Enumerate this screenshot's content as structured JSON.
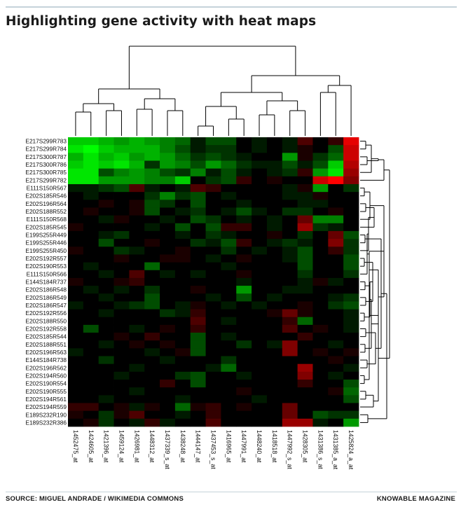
{
  "title": "Highlighting gene activity with heat maps",
  "source": "SOURCE: MIGUEL ANDRADE / WIKIMEDIA COMMONS",
  "publisher": "KNOWABLE MAGAZINE",
  "colors": {
    "high": "#00ff00",
    "low": "#ff0000",
    "mid": "#000000",
    "dendrogram": "#000000"
  },
  "chart_data": {
    "type": "heatmap",
    "title": "",
    "xlabel": "",
    "ylabel": "",
    "rows": [
      "E217S299R783",
      "E217S299R784",
      "E217S300R787",
      "E217S300R786",
      "E217S300R785",
      "E217S299R782",
      "E111S150R567",
      "E202S185R546",
      "E202S196R564",
      "E202S188R552",
      "E111S150R568",
      "E202S185R545",
      "E199S255R449",
      "E199S255R446",
      "E199S255R450",
      "E202S192R557",
      "E202S190R553",
      "E111S150R566",
      "E144S184R737",
      "E202S186R548",
      "E202S186R549",
      "E202S186R547",
      "E202S192R556",
      "E202S188R550",
      "E202S192R558",
      "E202S185R544",
      "E202S188R551",
      "E202S196R563",
      "E144S184R738",
      "E202S196R562",
      "E202S194R560",
      "E202S190R554",
      "E202S190R555",
      "E202S194R561",
      "E202S194R559",
      "E189S232R190",
      "E189S232R386"
    ],
    "columns": [
      "1452475_at",
      "1424605_at",
      "1421396_at",
      "1459124_at",
      "1426981_at",
      "1448312_at",
      "1437339_s_at",
      "1438248_at",
      "1444147_at",
      "1437453_s_at",
      "1416965_at",
      "1447991_at",
      "1448240_at",
      "1418518_at",
      "1447992_s_at",
      "1428305_at",
      "1431386_s_at",
      "1431385_a_at",
      "1425824_a_at"
    ],
    "values": [
      [
        0.8,
        0.8,
        0.7,
        0.6,
        0.7,
        0.6,
        0.5,
        0.4,
        0.1,
        0.3,
        0.3,
        0.0,
        0.1,
        0.0,
        0.1,
        -0.3,
        0.0,
        -0.2,
        -0.9
      ],
      [
        0.9,
        1.0,
        0.8,
        0.7,
        0.7,
        0.7,
        0.5,
        0.3,
        0.1,
        0.2,
        0.2,
        0.0,
        0.1,
        0.0,
        0.1,
        -0.1,
        0.0,
        0.3,
        -0.8
      ],
      [
        0.7,
        0.9,
        0.7,
        0.8,
        0.6,
        0.7,
        0.6,
        0.4,
        0.2,
        0.3,
        0.2,
        0.1,
        0.0,
        0.0,
        0.6,
        -0.1,
        0.2,
        0.4,
        -0.8
      ],
      [
        0.8,
        0.9,
        0.8,
        0.9,
        0.7,
        0.2,
        0.6,
        0.5,
        0.3,
        0.6,
        0.4,
        0.2,
        0.1,
        0.1,
        0.3,
        0.1,
        0.3,
        0.8,
        -0.7
      ],
      [
        0.9,
        0.9,
        0.3,
        0.5,
        0.6,
        0.5,
        0.3,
        0.2,
        0.5,
        0.1,
        0.3,
        0.1,
        0.0,
        0.1,
        0.2,
        -0.2,
        0.6,
        0.9,
        -0.6
      ],
      [
        0.9,
        0.9,
        0.6,
        0.6,
        0.6,
        0.5,
        0.5,
        0.8,
        0.0,
        0.2,
        0.3,
        -0.2,
        0.0,
        -0.1,
        0.0,
        0.0,
        -0.8,
        -1.0,
        -0.5
      ],
      [
        0.1,
        0.1,
        0.2,
        0.3,
        -0.3,
        0.1,
        0.0,
        0.1,
        -0.3,
        -0.2,
        0.0,
        0.0,
        0.0,
        0.0,
        0.1,
        -0.1,
        0.6,
        0.0,
        0.2
      ],
      [
        0.0,
        0.1,
        0.0,
        0.0,
        0.0,
        0.2,
        0.5,
        0.2,
        0.3,
        0.0,
        0.1,
        0.0,
        0.0,
        0.0,
        0.1,
        0.1,
        -0.1,
        0.0,
        0.0
      ],
      [
        0.0,
        0.0,
        -0.1,
        0.0,
        -0.1,
        0.3,
        0.2,
        0.0,
        0.3,
        0.0,
        0.0,
        0.1,
        0.0,
        0.0,
        0.0,
        0.1,
        0.1,
        0.0,
        0.0
      ],
      [
        0.0,
        -0.1,
        0.0,
        0.0,
        -0.1,
        0.3,
        0.0,
        0.1,
        0.2,
        0.0,
        0.1,
        0.3,
        0.1,
        0.0,
        0.2,
        0.2,
        0.0,
        -0.1,
        0.0
      ],
      [
        0.0,
        0.0,
        0.1,
        -0.1,
        0.0,
        0.0,
        0.1,
        0.0,
        0.3,
        0.2,
        0.0,
        0.1,
        0.0,
        0.1,
        0.0,
        -0.4,
        0.5,
        0.5,
        0.0
      ],
      [
        -0.1,
        0.0,
        0.0,
        0.0,
        0.0,
        0.1,
        0.0,
        0.3,
        0.0,
        0.3,
        -0.2,
        -0.2,
        0.0,
        0.1,
        0.0,
        -0.6,
        0.2,
        0.1,
        0.0
      ],
      [
        0.0,
        0.0,
        0.1,
        0.2,
        0.0,
        0.0,
        0.0,
        0.1,
        0.0,
        0.2,
        0.1,
        0.0,
        0.0,
        -0.1,
        0.0,
        0.2,
        0.0,
        -0.4,
        0.3
      ],
      [
        0.0,
        0.0,
        0.3,
        0.0,
        0.0,
        -0.1,
        0.0,
        0.0,
        0.2,
        0.1,
        0.3,
        -0.2,
        0.0,
        0.1,
        0.2,
        0.1,
        0.0,
        -0.5,
        0.2
      ],
      [
        -0.1,
        0.0,
        0.0,
        0.2,
        0.1,
        0.0,
        0.0,
        -0.1,
        0.0,
        0.0,
        0.2,
        0.0,
        0.1,
        0.0,
        0.1,
        0.3,
        0.0,
        -0.2,
        0.2
      ],
      [
        0.0,
        0.0,
        0.0,
        -0.1,
        0.0,
        0.0,
        -0.1,
        -0.1,
        0.0,
        0.1,
        0.0,
        -0.1,
        0.0,
        0.0,
        0.1,
        0.3,
        0.0,
        0.0,
        0.3
      ],
      [
        0.0,
        0.1,
        0.0,
        0.0,
        0.0,
        0.4,
        0.0,
        0.0,
        0.0,
        0.0,
        0.1,
        0.0,
        0.0,
        0.0,
        0.0,
        0.3,
        0.0,
        0.0,
        0.3
      ],
      [
        0.0,
        0.0,
        0.1,
        0.0,
        -0.3,
        0.0,
        0.1,
        0.0,
        0.1,
        0.0,
        0.0,
        -0.1,
        0.0,
        0.0,
        0.0,
        0.2,
        0.0,
        0.0,
        0.2
      ],
      [
        -0.1,
        0.0,
        0.0,
        -0.1,
        -0.2,
        0.0,
        0.0,
        0.0,
        0.0,
        0.0,
        0.0,
        0.1,
        0.0,
        0.0,
        0.0,
        0.1,
        -0.1,
        0.1,
        0.0
      ],
      [
        0.0,
        0.1,
        0.0,
        0.1,
        0.0,
        0.2,
        0.0,
        0.0,
        -0.1,
        0.0,
        0.0,
        0.6,
        0.0,
        0.0,
        0.1,
        0.1,
        0.0,
        0.0,
        0.0
      ],
      [
        0.0,
        0.0,
        0.1,
        0.0,
        0.0,
        0.3,
        0.0,
        0.0,
        0.0,
        0.1,
        0.0,
        0.3,
        0.0,
        0.1,
        0.0,
        0.0,
        0.0,
        0.1,
        0.2
      ],
      [
        0.1,
        0.0,
        0.0,
        0.1,
        0.2,
        0.3,
        0.0,
        0.1,
        -0.1,
        0.0,
        0.1,
        0.0,
        0.1,
        0.0,
        0.0,
        -0.1,
        0.0,
        0.2,
        0.3
      ],
      [
        0.0,
        0.0,
        0.1,
        0.0,
        0.0,
        0.0,
        0.2,
        0.1,
        -0.2,
        0.0,
        0.0,
        0.0,
        0.0,
        -0.1,
        -0.4,
        -0.1,
        0.0,
        0.0,
        0.1
      ],
      [
        0.0,
        0.0,
        0.0,
        0.0,
        0.0,
        0.0,
        0.0,
        0.0,
        -0.3,
        0.0,
        0.1,
        0.0,
        0.0,
        0.0,
        -0.2,
        0.4,
        0.0,
        0.0,
        0.1
      ],
      [
        0.0,
        0.3,
        0.0,
        0.0,
        0.1,
        0.0,
        -0.1,
        0.0,
        -0.2,
        0.0,
        0.0,
        0.0,
        0.0,
        0.0,
        -0.3,
        0.0,
        -0.1,
        0.0,
        0.1
      ],
      [
        0.0,
        0.0,
        0.0,
        -0.1,
        0.0,
        -0.2,
        0.0,
        0.0,
        0.3,
        0.0,
        0.1,
        0.0,
        0.0,
        0.0,
        0.0,
        -0.2,
        0.0,
        0.0,
        0.0
      ],
      [
        0.0,
        0.0,
        0.1,
        0.0,
        -0.1,
        0.0,
        -0.1,
        0.0,
        0.3,
        0.0,
        0.0,
        0.2,
        0.0,
        0.1,
        -0.5,
        0.0,
        0.0,
        0.1,
        0.0
      ],
      [
        0.1,
        0.0,
        0.0,
        0.0,
        0.0,
        0.1,
        0.0,
        -0.1,
        0.3,
        0.0,
        0.0,
        0.0,
        0.0,
        0.0,
        -0.5,
        0.0,
        -0.1,
        0.0,
        -0.1
      ],
      [
        0.0,
        0.0,
        0.2,
        0.0,
        0.0,
        0.0,
        0.1,
        0.0,
        0.0,
        0.0,
        0.2,
        0.0,
        0.0,
        0.0,
        0.0,
        0.0,
        0.0,
        -0.1,
        0.0
      ],
      [
        0.0,
        0.0,
        0.0,
        0.0,
        0.1,
        0.0,
        0.0,
        0.0,
        0.0,
        0.1,
        0.4,
        0.0,
        0.0,
        0.0,
        0.0,
        -0.6,
        0.0,
        0.0,
        0.1
      ],
      [
        0.0,
        0.0,
        0.0,
        0.1,
        0.0,
        0.0,
        0.0,
        0.2,
        0.3,
        0.0,
        0.0,
        0.1,
        0.0,
        0.0,
        0.0,
        -0.5,
        0.0,
        0.1,
        0.0
      ],
      [
        0.0,
        0.0,
        0.0,
        0.0,
        0.0,
        0.0,
        -0.2,
        0.0,
        0.3,
        0.0,
        0.0,
        0.0,
        0.0,
        0.0,
        0.0,
        -0.2,
        0.0,
        0.0,
        0.3
      ],
      [
        0.0,
        0.0,
        0.0,
        0.0,
        0.1,
        0.0,
        0.0,
        0.0,
        0.0,
        0.0,
        0.0,
        -0.1,
        0.0,
        0.0,
        0.0,
        0.0,
        0.0,
        -0.1,
        0.4
      ],
      [
        0.0,
        0.0,
        0.1,
        0.0,
        0.0,
        0.0,
        0.0,
        0.1,
        0.0,
        0.0,
        0.0,
        0.0,
        0.1,
        0.0,
        0.0,
        0.0,
        0.0,
        0.0,
        0.3
      ],
      [
        -0.2,
        -0.2,
        0.0,
        -0.1,
        0.1,
        -0.1,
        0.0,
        0.4,
        -0.1,
        -0.2,
        0.0,
        -0.1,
        0.0,
        0.0,
        -0.4,
        0.0,
        0.0,
        0.0,
        0.0
      ],
      [
        -0.1,
        0.0,
        0.2,
        -0.1,
        -0.3,
        0.0,
        0.0,
        0.1,
        0.0,
        -0.2,
        0.0,
        0.0,
        0.0,
        0.0,
        -0.4,
        0.0,
        0.3,
        0.2,
        0.2
      ],
      [
        0.0,
        -0.1,
        0.2,
        0.0,
        0.1,
        -0.2,
        0.1,
        0.0,
        0.0,
        -0.3,
        0.0,
        0.0,
        0.0,
        0.0,
        -0.6,
        -0.6,
        0.1,
        0.0,
        0.6
      ]
    ]
  }
}
